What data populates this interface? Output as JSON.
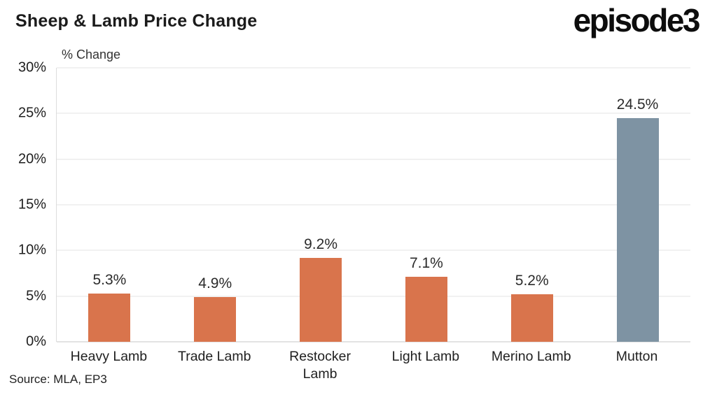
{
  "header": {
    "title": "Sheep & Lamb Price Change",
    "logo": "episode3"
  },
  "footer": {
    "source": "Source: MLA, EP3"
  },
  "chart_data": {
    "type": "bar",
    "title": "Sheep & Lamb Price Change",
    "ylabel": "% Change",
    "xlabel": "",
    "categories": [
      "Heavy Lamb",
      "Trade Lamb",
      "Restocker Lamb",
      "Light Lamb",
      "Merino Lamb",
      "Mutton"
    ],
    "xtick_labels": [
      "Heavy Lamb",
      "Trade Lamb",
      "Restocker\nLamb",
      "Light Lamb",
      "Merino Lamb",
      "Mutton"
    ],
    "values": [
      5.3,
      4.9,
      9.2,
      7.1,
      5.2,
      24.5
    ],
    "value_labels": [
      "5.3%",
      "4.9%",
      "9.2%",
      "7.1%",
      "5.2%",
      "24.5%"
    ],
    "ylim": [
      0,
      30
    ],
    "yticks": [
      0,
      5,
      10,
      15,
      20,
      25,
      30
    ],
    "ytick_labels": [
      "0%",
      "5%",
      "10%",
      "15%",
      "20%",
      "25%",
      "30%"
    ],
    "grid": true,
    "legend": "none",
    "bar_colors": [
      "#D9744C",
      "#D9744C",
      "#D9744C",
      "#D9744C",
      "#D9744C",
      "#7E93A3"
    ],
    "colors": {
      "bar_default": "#D9744C",
      "bar_highlight": "#7E93A3",
      "gridline": "#e3e3e3",
      "baseline": "#c7c7c7",
      "text": "#1f1f1f"
    }
  }
}
